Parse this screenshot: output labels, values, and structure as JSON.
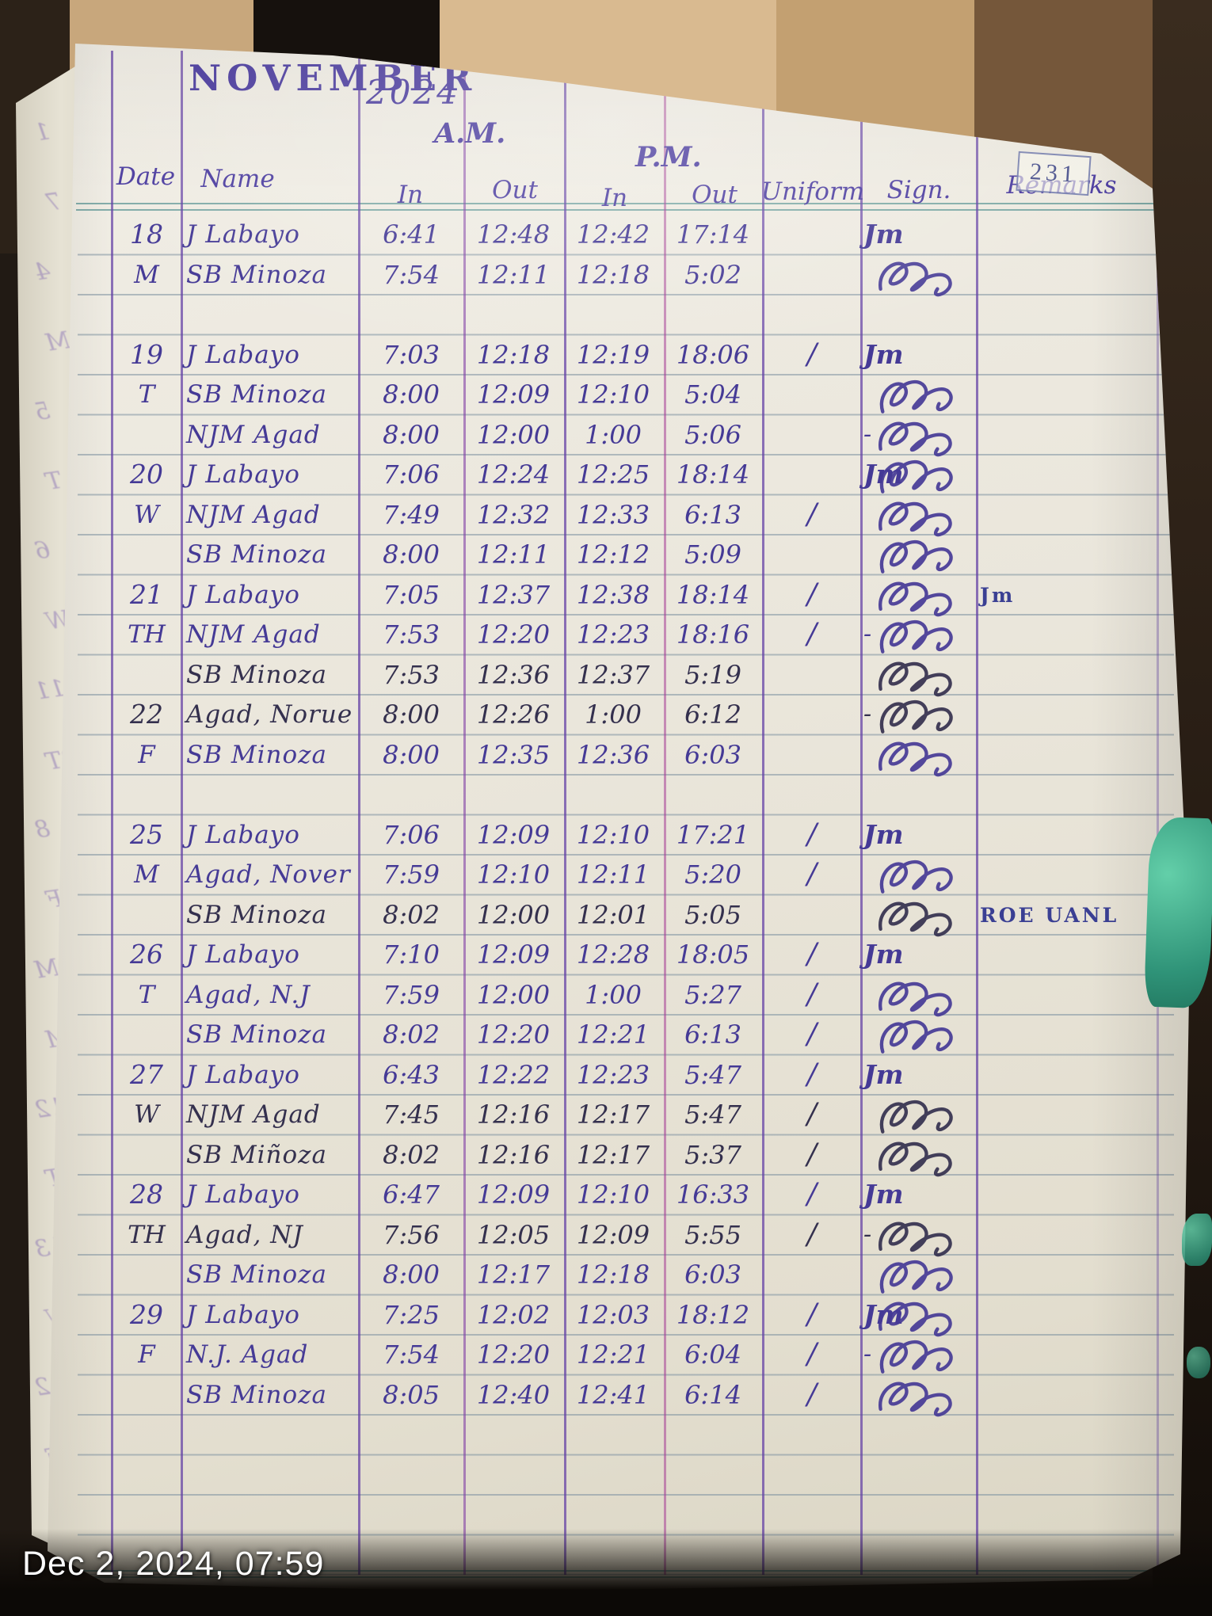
{
  "photo": {
    "timestamp": "Dec 2, 2024, 07:59"
  },
  "page": {
    "number": "231",
    "month": "NOVEMBER",
    "year": "2024",
    "am_label": "A.M.",
    "pm_label": "P.M.",
    "columns": [
      "Date",
      "Name",
      "In",
      "Out",
      "In",
      "Out",
      "Uniform",
      "Sign.",
      "Remarks"
    ]
  },
  "signatures": {
    "jm_label": "Jm"
  },
  "margin_marks": [
    "1",
    "7",
    "4",
    "M",
    "5",
    "T",
    "6",
    "W",
    "11",
    "BT",
    "8",
    "F",
    "M",
    "M",
    "12",
    "T",
    "13",
    "W",
    "2",
    "F"
  ],
  "rows": [
    {
      "date": "18",
      "name": "J Labayo",
      "am_in": "6:41",
      "am_out": "12:48",
      "pm_in": "12:42",
      "pm_out": "17:14",
      "uniform": "",
      "sign": "jm",
      "remarks": ""
    },
    {
      "day": "M",
      "name": "SB Minoza",
      "am_in": "7:54",
      "am_out": "12:11",
      "pm_in": "12:18",
      "pm_out": "5:02",
      "uniform": "",
      "sign": "loop",
      "remarks": ""
    },
    {},
    {
      "date": "19",
      "name": "J Labayo",
      "am_in": "7:03",
      "am_out": "12:18",
      "pm_in": "12:19",
      "pm_out": "18:06",
      "uniform": "/",
      "sign": "jm",
      "remarks": ""
    },
    {
      "day": "T",
      "name": "SB Minoza",
      "am_in": "8:00",
      "am_out": "12:09",
      "pm_in": "12:10",
      "pm_out": "5:04",
      "uniform": "",
      "sign": "loop",
      "remarks": ""
    },
    {
      "name": "NJM Agad",
      "am_in": "8:00",
      "am_out": "12:00",
      "pm_in": "1:00",
      "pm_out": "5:06",
      "uniform": "",
      "sign": "dash loop",
      "remarks": ""
    },
    {
      "date": "20",
      "name": "J Labayo",
      "am_in": "7:06",
      "am_out": "12:24",
      "pm_in": "12:25",
      "pm_out": "18:14",
      "uniform": "",
      "sign": "jm loop",
      "remarks": ""
    },
    {
      "day": "W",
      "name": "NJM Agad",
      "am_in": "7:49",
      "am_out": "12:32",
      "pm_in": "12:33",
      "pm_out": "6:13",
      "uniform": "/",
      "sign": "loop",
      "remarks": ""
    },
    {
      "name": "SB Minoza",
      "am_in": "8:00",
      "am_out": "12:11",
      "pm_in": "12:12",
      "pm_out": "5:09",
      "uniform": "",
      "sign": "loop",
      "remarks": ""
    },
    {
      "date": "21",
      "name": "J Labayo",
      "am_in": "7:05",
      "am_out": "12:37",
      "pm_in": "12:38",
      "pm_out": "18:14",
      "uniform": "/",
      "sign": "loop",
      "remarks": "Jm"
    },
    {
      "day": "TH",
      "name": "NJM Agad",
      "am_in": "7:53",
      "am_out": "12:20",
      "pm_in": "12:23",
      "pm_out": "18:16",
      "uniform": "/",
      "sign": "dash loop",
      "remarks": ""
    },
    {
      "name": "SB Minoza",
      "am_in": "7:53",
      "am_out": "12:36",
      "pm_in": "12:37",
      "pm_out": "5:19",
      "uniform": "",
      "sign": "loop",
      "remarks": "",
      "ink": "dark"
    },
    {
      "date": "22",
      "name": "Agad, Norue",
      "am_in": "8:00",
      "am_out": "12:26",
      "pm_in": "1:00",
      "pm_out": "6:12",
      "uniform": "",
      "sign": "dash loop",
      "remarks": "",
      "ink": "dark"
    },
    {
      "day": "F",
      "name": "SB Minoza",
      "am_in": "8:00",
      "am_out": "12:35",
      "pm_in": "12:36",
      "pm_out": "6:03",
      "uniform": "",
      "sign": "loop",
      "remarks": ""
    },
    {},
    {
      "date": "25",
      "name": "J Labayo",
      "am_in": "7:06",
      "am_out": "12:09",
      "pm_in": "12:10",
      "pm_out": "17:21",
      "uniform": "/",
      "sign": "jm",
      "remarks": ""
    },
    {
      "day": "M",
      "name": "Agad, Nover",
      "am_in": "7:59",
      "am_out": "12:10",
      "pm_in": "12:11",
      "pm_out": "5:20",
      "uniform": "/",
      "sign": "loop",
      "remarks": ""
    },
    {
      "name": "SB Minoza",
      "am_in": "8:02",
      "am_out": "12:00",
      "pm_in": "12:01",
      "pm_out": "5:05",
      "uniform": "",
      "sign": "loop",
      "remarks": "ROE UANL",
      "ink": "dark"
    },
    {
      "date": "26",
      "name": "J Labayo",
      "am_in": "7:10",
      "am_out": "12:09",
      "pm_in": "12:28",
      "pm_out": "18:05",
      "uniform": "/",
      "sign": "jm",
      "remarks": ""
    },
    {
      "day": "T",
      "name": "Agad, N.J",
      "am_in": "7:59",
      "am_out": "12:00",
      "pm_in": "1:00",
      "pm_out": "5:27",
      "uniform": "/",
      "sign": "loop",
      "remarks": ""
    },
    {
      "name": "SB Minoza",
      "am_in": "8:02",
      "am_out": "12:20",
      "pm_in": "12:21",
      "pm_out": "6:13",
      "uniform": "/",
      "sign": "loop",
      "remarks": ""
    },
    {
      "date": "27",
      "name": "J Labayo",
      "am_in": "6:43",
      "am_out": "12:22",
      "pm_in": "12:23",
      "pm_out": "5:47",
      "uniform": "/",
      "sign": "jm",
      "remarks": ""
    },
    {
      "day": "W",
      "name": "NJM Agad",
      "am_in": "7:45",
      "am_out": "12:16",
      "pm_in": "12:17",
      "pm_out": "5:47",
      "uniform": "/",
      "sign": "loop",
      "remarks": "",
      "ink": "dark"
    },
    {
      "name": "SB Miñoza",
      "am_in": "8:02",
      "am_out": "12:16",
      "pm_in": "12:17",
      "pm_out": "5:37",
      "uniform": "/",
      "sign": "loop",
      "remarks": "",
      "ink": "dark"
    },
    {
      "date": "28",
      "name": "J Labayo",
      "am_in": "6:47",
      "am_out": "12:09",
      "pm_in": "12:10",
      "pm_out": "16:33",
      "uniform": "/",
      "sign": "jm",
      "remarks": ""
    },
    {
      "day": "TH",
      "name": "Agad, NJ",
      "am_in": "7:56",
      "am_out": "12:05",
      "pm_in": "12:09",
      "pm_out": "5:55",
      "uniform": "/",
      "sign": "dash loop",
      "remarks": "",
      "ink": "dark"
    },
    {
      "name": "SB Minoza",
      "am_in": "8:00",
      "am_out": "12:17",
      "pm_in": "12:18",
      "pm_out": "6:03",
      "uniform": "",
      "sign": "loop",
      "remarks": ""
    },
    {
      "date": "29",
      "name": "J Labayo",
      "am_in": "7:25",
      "am_out": "12:02",
      "pm_in": "12:03",
      "pm_out": "18:12",
      "uniform": "/",
      "sign": "jm loop",
      "remarks": ""
    },
    {
      "day": "F",
      "name": "N.J. Agad",
      "am_in": "7:54",
      "am_out": "12:20",
      "pm_in": "12:21",
      "pm_out": "6:04",
      "uniform": "/",
      "sign": "dash loop",
      "remarks": ""
    },
    {
      "name": "SB Minoza",
      "am_in": "8:05",
      "am_out": "12:40",
      "pm_in": "12:41",
      "pm_out": "6:14",
      "uniform": "/",
      "sign": "loop",
      "remarks": ""
    },
    {}
  ],
  "colors": {
    "ink_purple": "#453a96",
    "ink_dark": "#34304e",
    "column_line_purple": "#623ea5",
    "rule_blue": "#7d91a0",
    "tape_teal": "#2f9378",
    "wall_tan": "#d9ba90"
  }
}
